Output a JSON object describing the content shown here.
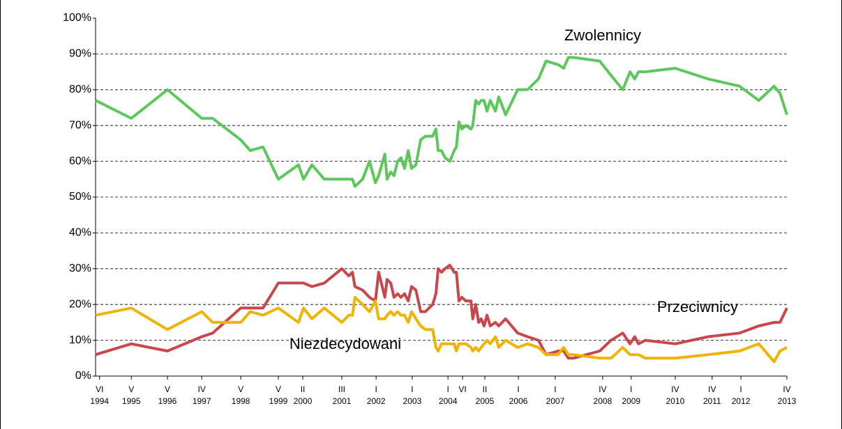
{
  "chart_data": {
    "type": "line",
    "x": [
      1994.3,
      1995.28,
      1996.27,
      1997.21,
      1997.51,
      1998.28,
      1998.54,
      1998.89,
      1999.31,
      1999.86,
      2000.0,
      2000.23,
      2000.57,
      2001.05,
      2001.24,
      2001.34,
      2001.41,
      2001.62,
      2001.81,
      2001.97,
      2002.06,
      2002.23,
      2002.29,
      2002.39,
      2002.48,
      2002.58,
      2002.67,
      2002.77,
      2002.87,
      2002.96,
      2003.08,
      2003.21,
      2003.34,
      2003.54,
      2003.63,
      2003.69,
      2003.78,
      2003.88,
      2004.01,
      2004.13,
      2004.19,
      2004.26,
      2004.34,
      2004.45,
      2004.59,
      2004.64,
      2004.72,
      2004.8,
      2004.87,
      2004.95,
      2005.03,
      2005.12,
      2005.26,
      2005.35,
      2005.54,
      2005.87,
      2006.14,
      2006.44,
      2006.65,
      2006.98,
      2007.13,
      2007.26,
      2007.4,
      2008.12,
      2008.43,
      2008.75,
      2008.95,
      2009.08,
      2009.18,
      2009.37,
      2010.19,
      2011.09,
      2011.95,
      2012.48,
      2012.9,
      2013.06,
      2013.25
    ],
    "series": [
      {
        "name": "Zwolennicy",
        "color": "#5cc85c",
        "values": [
          77,
          72,
          80,
          72,
          72,
          66,
          63,
          64,
          55,
          59,
          55,
          59,
          55,
          55,
          55,
          55,
          53,
          55,
          60,
          54,
          56,
          62,
          55,
          57,
          56,
          60,
          61,
          58,
          63,
          58,
          59,
          66,
          67,
          67,
          69,
          63,
          63,
          61,
          60,
          63,
          64,
          71,
          69,
          70,
          69,
          70,
          77,
          76,
          77,
          77,
          74,
          77,
          74,
          78,
          73,
          80,
          80,
          83,
          88,
          87,
          86,
          89,
          89,
          88,
          84,
          80,
          85,
          83,
          85,
          85,
          86,
          83,
          81,
          77,
          81,
          79,
          73
        ]
      },
      {
        "name": "Przeciwnicy",
        "color": "#c9474a",
        "values": [
          6,
          9,
          7,
          11,
          12,
          19,
          19,
          19,
          26,
          26,
          26,
          25,
          26,
          30,
          28,
          29,
          25,
          24,
          22,
          21,
          29,
          22,
          27,
          26,
          22,
          23,
          22,
          23,
          21,
          25,
          24,
          18,
          18,
          20,
          23,
          30,
          29,
          30,
          31,
          29,
          29,
          21,
          22,
          21,
          21,
          16,
          20,
          15,
          16,
          14,
          17,
          14,
          15,
          14,
          16,
          12,
          11,
          10,
          6,
          7,
          7,
          5,
          5,
          7,
          10,
          12,
          9,
          11,
          9,
          10,
          9,
          11,
          12,
          14,
          15,
          15,
          19
        ]
      },
      {
        "name": "Niezdecydowani",
        "color": "#f0b400",
        "values": [
          17,
          19,
          13,
          18,
          15,
          15,
          18,
          17,
          19,
          15,
          19,
          16,
          19,
          15,
          17,
          17,
          22,
          20,
          18,
          21,
          16,
          16,
          17,
          18,
          17,
          18,
          17,
          17,
          15,
          18,
          16,
          14,
          13,
          13,
          8,
          7,
          9,
          9,
          9,
          9,
          7,
          9,
          9,
          9,
          8,
          7,
          8,
          7,
          8,
          9,
          10,
          9,
          11,
          8,
          10,
          8,
          9,
          8,
          6,
          6,
          8,
          6,
          6,
          5,
          5,
          8,
          6,
          6,
          6,
          5,
          5,
          6,
          7,
          9,
          4,
          7,
          8
        ]
      }
    ],
    "xlim": [
      1994.3,
      2013.25
    ],
    "xticks": [
      {
        "value": 1994.41,
        "label": "VI 1994"
      },
      {
        "value": 1995.28,
        "label": "V 1995"
      },
      {
        "value": 1996.27,
        "label": "V 1996"
      },
      {
        "value": 1997.21,
        "label": "IV 1997"
      },
      {
        "value": 1998.28,
        "label": "V 1998"
      },
      {
        "value": 1999.31,
        "label": "V 1999"
      },
      {
        "value": 1999.98,
        "label": "II 2000"
      },
      {
        "value": 2001.05,
        "label": "III 2001"
      },
      {
        "value": 2001.99,
        "label": "I 2002"
      },
      {
        "value": 2002.98,
        "label": "I 2003"
      },
      {
        "value": 2003.96,
        "label": "I 2004"
      },
      {
        "value": 2004.36,
        "label": "VI"
      },
      {
        "value": 2004.97,
        "label": "II 2005"
      },
      {
        "value": 2005.89,
        "label": "I 2006"
      },
      {
        "value": 2006.9,
        "label": "I 2007"
      },
      {
        "value": 2008.2,
        "label": "IV 2008"
      },
      {
        "value": 2008.98,
        "label": "I 2009"
      },
      {
        "value": 2010.19,
        "label": "IV 2010"
      },
      {
        "value": 2011.2,
        "label": "IV 2011"
      },
      {
        "value": 2011.99,
        "label": "I 2012"
      },
      {
        "value": 2013.25,
        "label": "IV 2013"
      }
    ],
    "ylim": [
      0,
      100
    ],
    "yticks": [
      {
        "value": 0,
        "label": "0%"
      },
      {
        "value": 10,
        "label": "10%"
      },
      {
        "value": 20,
        "label": "20%"
      },
      {
        "value": 30,
        "label": "30%"
      },
      {
        "value": 40,
        "label": "40%"
      },
      {
        "value": 50,
        "label": "50%"
      },
      {
        "value": 60,
        "label": "60%"
      },
      {
        "value": 70,
        "label": "70%"
      },
      {
        "value": 80,
        "label": "80%"
      },
      {
        "value": 90,
        "label": "90%"
      },
      {
        "value": 100,
        "label": "100%"
      }
    ],
    "grid": true
  }
}
